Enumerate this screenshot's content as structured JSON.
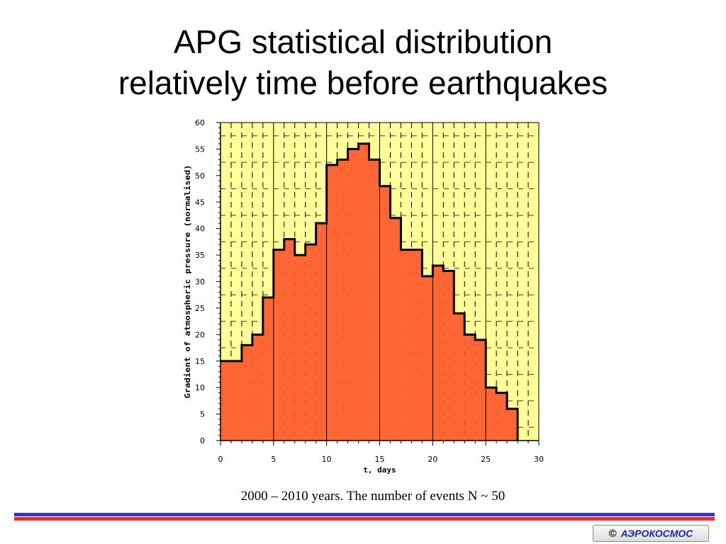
{
  "title": {
    "line1": "APG statistical distribution",
    "line2": "relatively time before earthquakes"
  },
  "caption": "2000 – 2010 years. The number of events N ~ 50",
  "logo": {
    "symbol": "©",
    "text": "АЭРОКОСМОС"
  },
  "colors": {
    "plot_background": "#ffff99",
    "histogram_fill": "#ff6633",
    "histogram_outline": "#000000",
    "stripe_blue": "#3535c8",
    "stripe_red": "#e12d2d"
  },
  "chart_data": {
    "type": "bar",
    "title": "",
    "xlabel": "t, days",
    "ylabel": "Gradient of atmospheric pressure (normalised)",
    "xlim": [
      0,
      30
    ],
    "ylim": [
      0,
      60
    ],
    "x_ticks": [
      0,
      5,
      10,
      15,
      20,
      25,
      30
    ],
    "y_ticks": [
      0,
      5,
      10,
      15,
      20,
      25,
      30,
      35,
      40,
      45,
      50,
      55,
      60
    ],
    "grid": true,
    "bin_width": 1,
    "bin_starts": [
      0,
      1,
      2,
      3,
      4,
      5,
      6,
      7,
      8,
      9,
      10,
      11,
      12,
      13,
      14,
      15,
      16,
      17,
      18,
      19,
      20,
      21,
      22,
      23,
      24,
      25,
      26,
      27
    ],
    "values": [
      15,
      15,
      18,
      20,
      27,
      36,
      38,
      35,
      37,
      41,
      52,
      53,
      55,
      56,
      53,
      48,
      42,
      36,
      36,
      31,
      33,
      32,
      24,
      20,
      19,
      10,
      9,
      6
    ]
  }
}
